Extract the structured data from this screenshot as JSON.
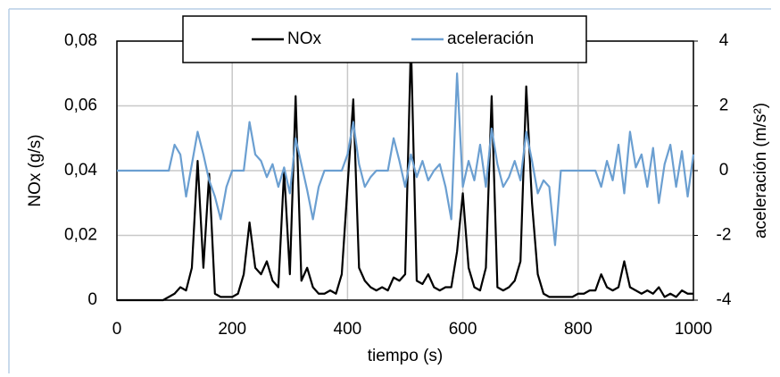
{
  "chart_data": {
    "type": "line",
    "xlabel": "tiempo (s)",
    "ylabel": "NOx (g/s)",
    "y2label": "aceleración (m/s²)",
    "legend": "top",
    "grid": true,
    "xlim": [
      0,
      1000
    ],
    "xticks": [
      0,
      200,
      400,
      600,
      800,
      1000
    ],
    "ylim": [
      0,
      0.08
    ],
    "yticks": [
      0,
      {
        "value": 0.02,
        "label": "0,02"
      },
      {
        "value": 0.04,
        "label": "0,04"
      },
      {
        "value": 0.06,
        "label": "0,06"
      },
      {
        "value": 0.08,
        "label": "0,08"
      }
    ],
    "y2lim": [
      -4,
      4
    ],
    "y2ticks": [
      -4,
      -2,
      0,
      2,
      4
    ],
    "x": [
      0,
      10,
      20,
      30,
      40,
      50,
      60,
      70,
      80,
      90,
      100,
      110,
      120,
      130,
      140,
      150,
      160,
      170,
      180,
      190,
      200,
      210,
      220,
      230,
      240,
      250,
      260,
      270,
      280,
      290,
      300,
      310,
      320,
      330,
      340,
      350,
      360,
      370,
      380,
      390,
      400,
      410,
      420,
      430,
      440,
      450,
      460,
      470,
      480,
      490,
      500,
      510,
      520,
      530,
      540,
      550,
      560,
      570,
      580,
      590,
      600,
      610,
      620,
      630,
      640,
      650,
      660,
      670,
      680,
      690,
      700,
      710,
      720,
      730,
      740,
      750,
      760,
      770,
      780,
      790,
      800,
      810,
      820,
      830,
      840,
      850,
      860,
      870,
      880,
      890,
      900,
      910,
      920,
      930,
      940,
      950,
      960,
      970,
      980,
      990,
      1000
    ],
    "series": [
      {
        "name": "NOx",
        "color": "#000000",
        "values": [
          0,
          0,
          0,
          0,
          0,
          0,
          0,
          0,
          0,
          0.001,
          0.002,
          0.004,
          0.003,
          0.01,
          0.043,
          0.01,
          0.039,
          0.002,
          0.001,
          0.001,
          0.001,
          0.002,
          0.008,
          0.024,
          0.01,
          0.008,
          0.012,
          0.006,
          0.004,
          0.04,
          0.008,
          0.063,
          0.006,
          0.01,
          0.004,
          0.002,
          0.002,
          0.003,
          0.002,
          0.008,
          0.035,
          0.062,
          0.01,
          0.006,
          0.004,
          0.003,
          0.004,
          0.003,
          0.007,
          0.006,
          0.008,
          0.08,
          0.006,
          0.005,
          0.008,
          0.004,
          0.003,
          0.004,
          0.004,
          0.015,
          0.033,
          0.01,
          0.004,
          0.003,
          0.01,
          0.063,
          0.004,
          0.003,
          0.004,
          0.006,
          0.012,
          0.066,
          0.03,
          0.008,
          0.002,
          0.001,
          0.001,
          0.001,
          0.001,
          0.001,
          0.002,
          0.002,
          0.003,
          0.003,
          0.008,
          0.004,
          0.003,
          0.004,
          0.012,
          0.004,
          0.003,
          0.002,
          0.003,
          0.002,
          0.004,
          0.001,
          0.002,
          0.001,
          0.003,
          0.002,
          0.002
        ]
      },
      {
        "name": "aceleración",
        "color": "#6b9fd1",
        "axis": "y2",
        "values": [
          0,
          0,
          0,
          0,
          0,
          0,
          0,
          0,
          0,
          0,
          0.8,
          0.5,
          -0.8,
          0.2,
          1.2,
          0.5,
          -0.3,
          -0.8,
          -1.5,
          -0.5,
          0,
          0,
          0,
          1.5,
          0.5,
          0.3,
          -0.2,
          0.2,
          -0.5,
          0.1,
          -0.7,
          1.0,
          0.2,
          -0.6,
          -1.5,
          -0.5,
          0,
          0,
          0,
          0,
          0.5,
          1.5,
          0.2,
          -0.5,
          -0.2,
          0,
          0,
          0,
          1.0,
          0.3,
          -0.5,
          0.5,
          -0.2,
          0.3,
          -0.3,
          0,
          0.2,
          -0.5,
          -1.5,
          3.0,
          -0.5,
          0.3,
          -0.3,
          0.8,
          -0.5,
          1.3,
          0.2,
          -0.5,
          -0.2,
          0.3,
          -0.3,
          1.2,
          0.3,
          -0.7,
          -0.3,
          -0.5,
          -2.3,
          0,
          0,
          0,
          0,
          0,
          0,
          0,
          -0.5,
          0.3,
          -0.3,
          0.8,
          -0.7,
          1.2,
          0.1,
          0.5,
          -0.5,
          0.7,
          -1.0,
          0.2,
          0.8,
          -0.5,
          0.6,
          -0.8,
          0.5
        ]
      }
    ]
  }
}
